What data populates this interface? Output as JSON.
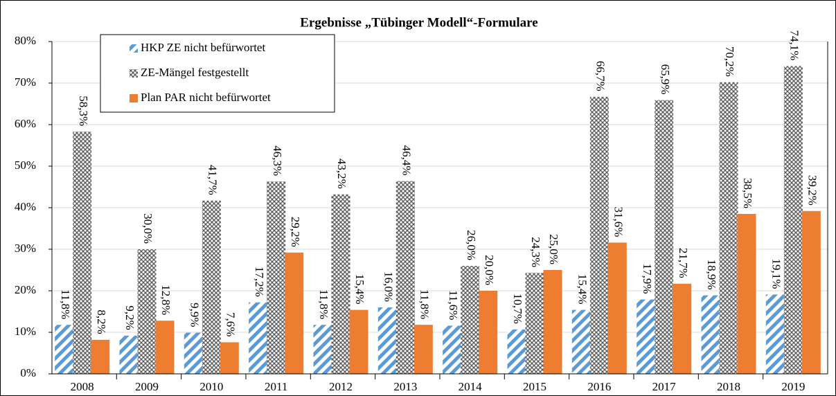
{
  "chart_data": {
    "type": "bar",
    "title": "Ergebnisse „Tübinger Modell“-Formulare",
    "categories": [
      "2008",
      "2009",
      "2010",
      "2011",
      "2012",
      "2013",
      "2014",
      "2015",
      "2016",
      "2017",
      "2018",
      "2019"
    ],
    "series": [
      {
        "name": "HKP ZE nicht befürwortet",
        "color": "#5b9bd5",
        "pattern": "diagonal",
        "values": [
          11.8,
          9.2,
          9.9,
          17.2,
          11.8,
          16.0,
          11.6,
          10.7,
          15.4,
          17.9,
          18.9,
          19.1
        ],
        "value_labels": [
          "11,8%",
          "9,2%",
          "9,9%",
          "17,2%",
          "11,8%",
          "16,0%",
          "11,6%",
          "10,7%",
          "15,4%",
          "17,9%",
          "18,9%",
          "19,1%"
        ]
      },
      {
        "name": "ZE-Mängel festgestellt",
        "color": "#595959",
        "pattern": "crosshatch",
        "values": [
          58.3,
          30.0,
          41.7,
          46.3,
          43.2,
          46.4,
          26.0,
          24.3,
          66.7,
          65.9,
          70.2,
          74.1
        ],
        "value_labels": [
          "58,3%",
          "30,0%",
          "41,7%",
          "46,3%",
          "43,2%",
          "46,4%",
          "26,0%",
          "24,3%",
          "66,7%",
          "65,9%",
          "70,2%",
          "74,1%"
        ]
      },
      {
        "name": "Plan PAR nicht befürwortet",
        "color": "#ed7d31",
        "pattern": "solid",
        "values": [
          8.2,
          12.8,
          7.6,
          29.2,
          15.4,
          11.8,
          20.0,
          25.0,
          31.6,
          21.7,
          38.5,
          39.2
        ],
        "value_labels": [
          "8,2%",
          "12,8%",
          "7,6%",
          "29,2%",
          "15,4%",
          "11,8%",
          "20,0%",
          "25,0%",
          "31,6%",
          "21,7%",
          "38,5%",
          "39,2%"
        ]
      }
    ],
    "ylim": [
      0,
      80
    ],
    "yticks": [
      {
        "value": 0,
        "label": "0%"
      },
      {
        "value": 10,
        "label": "10%"
      },
      {
        "value": 20,
        "label": "20%"
      },
      {
        "value": 30,
        "label": "30%"
      },
      {
        "value": 40,
        "label": "40%"
      },
      {
        "value": 50,
        "label": "50%"
      },
      {
        "value": 60,
        "label": "60%"
      },
      {
        "value": 70,
        "label": "70%"
      },
      {
        "value": 80,
        "label": "80%"
      }
    ],
    "grid": true,
    "legend": "top-left"
  }
}
